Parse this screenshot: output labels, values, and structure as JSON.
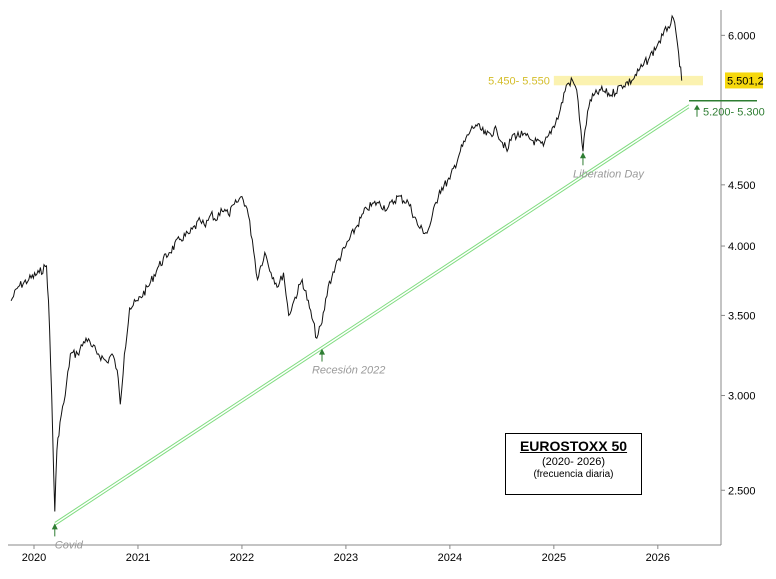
{
  "chart_data": {
    "type": "line",
    "title": "EUROSTOXX 50",
    "subtitle": "(2020- 2026)",
    "note": "(frecuencia diaria)",
    "x_tick_labels": [
      "2020",
      "2021",
      "2022",
      "2023",
      "2024",
      "2025",
      "2026"
    ],
    "y_tick_labels": [
      "6.000",
      "4.500",
      "4.000",
      "3.500",
      "3.000",
      "2.500"
    ],
    "y_tick_values": [
      6000,
      4500,
      4000,
      3500,
      3000,
      2500
    ],
    "y_scale": "log",
    "ylim": [
      2250,
      6300
    ],
    "xlim": [
      2019.75,
      2026.55
    ],
    "series": [
      {
        "x": [
          2019.78,
          2019.85,
          2019.95,
          2020.05,
          2020.12,
          2020.14,
          2020.17,
          2020.2,
          2020.22,
          2020.25,
          2020.3,
          2020.35,
          2020.42,
          2020.5,
          2020.55,
          2020.62,
          2020.7,
          2020.75,
          2020.8,
          2020.83,
          2020.87,
          2020.92,
          2021.0,
          2021.1,
          2021.2,
          2021.3,
          2021.4,
          2021.5,
          2021.6,
          2021.65,
          2021.7,
          2021.75,
          2021.8,
          2021.87,
          2021.95,
          2022.0,
          2022.05,
          2022.1,
          2022.15,
          2022.18,
          2022.22,
          2022.28,
          2022.35,
          2022.4,
          2022.45,
          2022.5,
          2022.58,
          2022.65,
          2022.72,
          2022.77,
          2022.83,
          2022.9,
          2023.0,
          2023.1,
          2023.2,
          2023.3,
          2023.4,
          2023.5,
          2023.6,
          2023.7,
          2023.78,
          2023.82,
          2023.9,
          2024.0,
          2024.1,
          2024.2,
          2024.25,
          2024.35,
          2024.45,
          2024.55,
          2024.6,
          2024.7,
          2024.8,
          2024.9,
          2024.95,
          2025.05,
          2025.12,
          2025.18,
          2025.22,
          2025.26,
          2025.28,
          2025.3,
          2025.35,
          2025.45,
          2025.55,
          2025.65,
          2025.75,
          2025.85,
          2025.92,
          2026.0,
          2026.05,
          2026.1,
          2026.15,
          2026.2,
          2026.23
        ],
        "y": [
          3600,
          3700,
          3750,
          3800,
          3850,
          3600,
          3000,
          2400,
          2700,
          2850,
          3000,
          3250,
          3250,
          3350,
          3300,
          3250,
          3200,
          3250,
          3150,
          2950,
          3250,
          3550,
          3600,
          3700,
          3850,
          3950,
          4050,
          4100,
          4200,
          4150,
          4250,
          4200,
          4300,
          4250,
          4350,
          4400,
          4300,
          4050,
          3750,
          3850,
          3950,
          3800,
          3700,
          3800,
          3500,
          3600,
          3750,
          3550,
          3350,
          3450,
          3700,
          3850,
          4000,
          4150,
          4300,
          4350,
          4300,
          4400,
          4350,
          4150,
          4100,
          4200,
          4450,
          4550,
          4800,
          5000,
          5050,
          4950,
          5000,
          4800,
          4950,
          4950,
          4900,
          4850,
          4950,
          5150,
          5450,
          5500,
          5400,
          5000,
          4800,
          5000,
          5300,
          5400,
          5350,
          5450,
          5500,
          5650,
          5750,
          5900,
          6000,
          6100,
          6200,
          5800,
          5500
        ]
      }
    ],
    "trendline": {
      "from": [
        2020.2,
        2350
      ],
      "to": [
        2026.3,
        5250
      ]
    },
    "resistance_zone": {
      "label": "5.450- 5.550",
      "range": [
        5450,
        5550
      ]
    },
    "support_zone": {
      "label": "5.200- 5.300",
      "range": [
        5200,
        5300
      ]
    },
    "last_value": {
      "label": "5.501,2",
      "value": 5501.2
    },
    "annotations": [
      {
        "label": "Covid",
        "x": 2020.2,
        "y": 2350
      },
      {
        "label": "Recesión 2022",
        "x": 2022.77,
        "y": 3290
      },
      {
        "label": "Liberation Day",
        "x": 2025.28,
        "y": 4800
      }
    ],
    "colors": {
      "price": "#111111",
      "trendline": "#7fdc7f",
      "resistance_fill": "#fbf2b0",
      "resistance_text": "#d4bd29",
      "last_value_fill": "#f6d80d",
      "support_line": "#2e7d32",
      "support_text": "#2e7d32",
      "annotation_text": "#9a9a9a",
      "annotation_arrow": "#2e7d32"
    }
  }
}
